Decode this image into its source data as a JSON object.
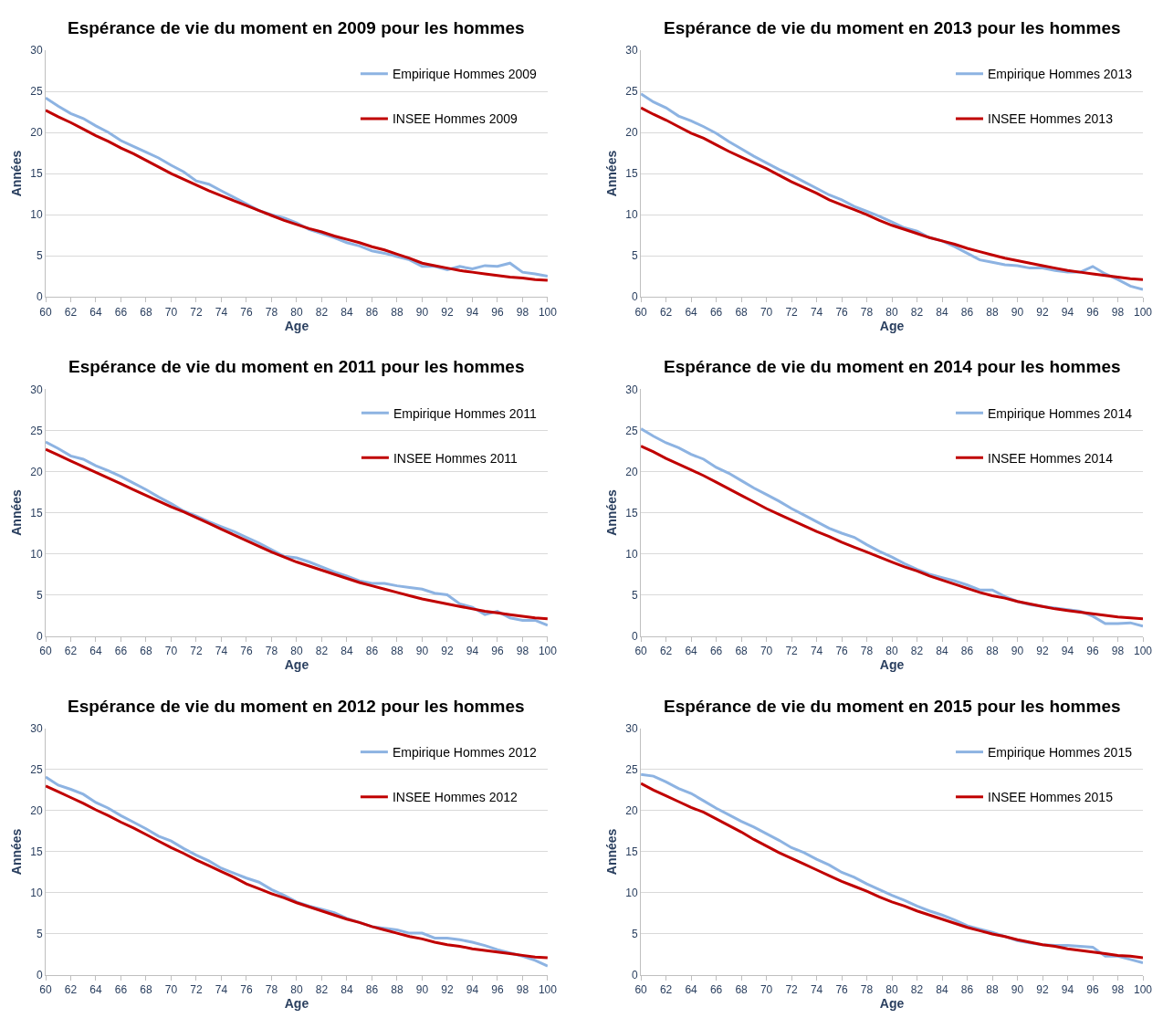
{
  "chart_data": [
    {
      "type": "line",
      "title": "Espérance de vie du moment en 2009 pour les hommes",
      "xlabel": "Age",
      "ylabel": "Années",
      "x": [
        60,
        61,
        62,
        63,
        64,
        65,
        66,
        67,
        68,
        69,
        70,
        71,
        72,
        73,
        74,
        75,
        76,
        77,
        78,
        79,
        80,
        81,
        82,
        83,
        84,
        85,
        86,
        87,
        88,
        89,
        90,
        91,
        92,
        93,
        94,
        95,
        96,
        97,
        98,
        99,
        100
      ],
      "xlim": [
        60,
        100
      ],
      "xticks": [
        60,
        62,
        64,
        66,
        68,
        70,
        72,
        74,
        76,
        78,
        80,
        82,
        84,
        86,
        88,
        90,
        92,
        94,
        96,
        98,
        100
      ],
      "ylim": [
        0,
        30
      ],
      "yticks": [
        0,
        5,
        10,
        15,
        20,
        25,
        30
      ],
      "grid": "y",
      "legend": "top right",
      "marker": "none",
      "line_style": "solid",
      "series": [
        {
          "name": "Empirique Hommes 2009",
          "color": "#8db3e2",
          "values": [
            24.2,
            23.2,
            22.3,
            21.7,
            20.8,
            20.0,
            19.0,
            18.3,
            17.6,
            16.9,
            16.0,
            15.2,
            14.1,
            13.7,
            12.9,
            12.1,
            11.3,
            10.5,
            10.0,
            9.6,
            9.0,
            8.2,
            7.7,
            7.2,
            6.6,
            6.2,
            5.6,
            5.3,
            4.9,
            4.5,
            3.7,
            3.7,
            3.3,
            3.7,
            3.4,
            3.8,
            3.7,
            4.1,
            3.0,
            2.8,
            2.5
          ]
        },
        {
          "name": "INSEE Hommes 2009",
          "color": "#c00000",
          "values": [
            22.7,
            21.9,
            21.2,
            20.4,
            19.6,
            18.9,
            18.1,
            17.4,
            16.6,
            15.8,
            15.0,
            14.3,
            13.6,
            12.9,
            12.3,
            11.7,
            11.1,
            10.5,
            9.9,
            9.3,
            8.8,
            8.3,
            7.9,
            7.4,
            7.0,
            6.6,
            6.1,
            5.7,
            5.2,
            4.7,
            4.1,
            3.8,
            3.5,
            3.2,
            3.0,
            2.8,
            2.6,
            2.4,
            2.3,
            2.1,
            2.0
          ]
        }
      ]
    },
    {
      "type": "line",
      "title": "Espérance de vie du moment en 2013 pour les hommes",
      "xlabel": "Age",
      "ylabel": "Années",
      "x": [
        60,
        61,
        62,
        63,
        64,
        65,
        66,
        67,
        68,
        69,
        70,
        71,
        72,
        73,
        74,
        75,
        76,
        77,
        78,
        79,
        80,
        81,
        82,
        83,
        84,
        85,
        86,
        87,
        88,
        89,
        90,
        91,
        92,
        93,
        94,
        95,
        96,
        97,
        98,
        99,
        100
      ],
      "xlim": [
        60,
        100
      ],
      "xticks": [
        60,
        62,
        64,
        66,
        68,
        70,
        72,
        74,
        76,
        78,
        80,
        82,
        84,
        86,
        88,
        90,
        92,
        94,
        96,
        98,
        100
      ],
      "ylim": [
        0,
        30
      ],
      "yticks": [
        0,
        5,
        10,
        15,
        20,
        25,
        30
      ],
      "grid": "y",
      "legend": "top right",
      "marker": "none",
      "line_style": "solid",
      "series": [
        {
          "name": "Empirique Hommes 2013",
          "color": "#8db3e2",
          "values": [
            24.7,
            23.7,
            23.0,
            22.0,
            21.4,
            20.7,
            19.9,
            18.9,
            18.0,
            17.1,
            16.3,
            15.5,
            14.8,
            14.0,
            13.2,
            12.4,
            11.8,
            11.0,
            10.4,
            9.8,
            9.1,
            8.4,
            8.0,
            7.2,
            6.8,
            6.1,
            5.3,
            4.5,
            4.2,
            3.9,
            3.8,
            3.5,
            3.5,
            3.2,
            3.0,
            3.0,
            3.7,
            2.8,
            2.1,
            1.3,
            0.9
          ]
        },
        {
          "name": "INSEE Hommes 2013",
          "color": "#c00000",
          "values": [
            23.0,
            22.2,
            21.5,
            20.7,
            19.9,
            19.3,
            18.5,
            17.7,
            17.0,
            16.3,
            15.6,
            14.8,
            14.0,
            13.3,
            12.6,
            11.8,
            11.2,
            10.6,
            10.0,
            9.3,
            8.7,
            8.2,
            7.7,
            7.2,
            6.8,
            6.4,
            5.9,
            5.5,
            5.1,
            4.7,
            4.4,
            4.1,
            3.8,
            3.5,
            3.2,
            3.0,
            2.8,
            2.6,
            2.4,
            2.2,
            2.1
          ]
        }
      ]
    },
    {
      "type": "line",
      "title": "Espérance de vie du moment en 2011 pour les hommes",
      "xlabel": "Age",
      "ylabel": "Années",
      "x": [
        60,
        61,
        62,
        63,
        64,
        65,
        66,
        67,
        68,
        69,
        70,
        71,
        72,
        73,
        74,
        75,
        76,
        77,
        78,
        79,
        80,
        81,
        82,
        83,
        84,
        85,
        86,
        87,
        88,
        89,
        90,
        91,
        92,
        93,
        94,
        95,
        96,
        97,
        98,
        99,
        100
      ],
      "xlim": [
        60,
        100
      ],
      "xticks": [
        60,
        62,
        64,
        66,
        68,
        70,
        72,
        74,
        76,
        78,
        80,
        82,
        84,
        86,
        88,
        90,
        92,
        94,
        96,
        98,
        100
      ],
      "ylim": [
        0,
        30
      ],
      "yticks": [
        0,
        5,
        10,
        15,
        20,
        25,
        30
      ],
      "grid": "y",
      "legend": "top right",
      "marker": "none",
      "line_style": "solid",
      "series": [
        {
          "name": "Empirique Hommes 2011",
          "color": "#8db3e2",
          "values": [
            23.6,
            22.8,
            21.9,
            21.5,
            20.7,
            20.1,
            19.4,
            18.6,
            17.8,
            16.9,
            16.1,
            15.2,
            14.6,
            13.9,
            13.3,
            12.7,
            12.0,
            11.3,
            10.5,
            9.7,
            9.5,
            9.0,
            8.4,
            7.8,
            7.3,
            6.7,
            6.4,
            6.4,
            6.1,
            5.9,
            5.7,
            5.2,
            5.0,
            3.9,
            3.5,
            2.6,
            3.0,
            2.2,
            1.9,
            1.9,
            1.3
          ]
        },
        {
          "name": "INSEE Hommes 2011",
          "color": "#c00000",
          "values": [
            22.7,
            22.0,
            21.3,
            20.6,
            19.9,
            19.2,
            18.5,
            17.8,
            17.1,
            16.4,
            15.7,
            15.1,
            14.4,
            13.7,
            13.0,
            12.3,
            11.6,
            10.9,
            10.2,
            9.6,
            9.0,
            8.5,
            8.0,
            7.5,
            7.0,
            6.5,
            6.1,
            5.7,
            5.3,
            4.9,
            4.5,
            4.2,
            3.9,
            3.6,
            3.3,
            3.0,
            2.8,
            2.6,
            2.4,
            2.2,
            2.1
          ]
        }
      ]
    },
    {
      "type": "line",
      "title": "Espérance de vie du moment en 2014 pour les hommes",
      "xlabel": "Age",
      "ylabel": "Années",
      "x": [
        60,
        61,
        62,
        63,
        64,
        65,
        66,
        67,
        68,
        69,
        70,
        71,
        72,
        73,
        74,
        75,
        76,
        77,
        78,
        79,
        80,
        81,
        82,
        83,
        84,
        85,
        86,
        87,
        88,
        89,
        90,
        91,
        92,
        93,
        94,
        95,
        96,
        97,
        98,
        99,
        100
      ],
      "xlim": [
        60,
        100
      ],
      "xticks": [
        60,
        62,
        64,
        66,
        68,
        70,
        72,
        74,
        76,
        78,
        80,
        82,
        84,
        86,
        88,
        90,
        92,
        94,
        96,
        98,
        100
      ],
      "ylim": [
        0,
        30
      ],
      "yticks": [
        0,
        5,
        10,
        15,
        20,
        25,
        30
      ],
      "grid": "y",
      "legend": "top right",
      "marker": "none",
      "line_style": "solid",
      "series": [
        {
          "name": "Empirique Hommes 2014",
          "color": "#8db3e2",
          "values": [
            25.2,
            24.3,
            23.5,
            22.9,
            22.1,
            21.5,
            20.5,
            19.8,
            18.9,
            18.0,
            17.2,
            16.4,
            15.5,
            14.7,
            13.9,
            13.1,
            12.5,
            12.0,
            11.1,
            10.3,
            9.6,
            8.8,
            8.1,
            7.5,
            7.1,
            6.7,
            6.2,
            5.6,
            5.6,
            4.8,
            4.2,
            3.8,
            3.6,
            3.4,
            3.2,
            3.0,
            2.4,
            1.5,
            1.5,
            1.6,
            1.2
          ]
        },
        {
          "name": "INSEE Hommes 2014",
          "color": "#c00000",
          "values": [
            23.1,
            22.4,
            21.6,
            20.9,
            20.2,
            19.5,
            18.7,
            17.9,
            17.1,
            16.3,
            15.5,
            14.8,
            14.1,
            13.4,
            12.7,
            12.1,
            11.4,
            10.8,
            10.2,
            9.6,
            9.0,
            8.4,
            7.9,
            7.3,
            6.8,
            6.3,
            5.8,
            5.3,
            4.9,
            4.6,
            4.2,
            3.9,
            3.6,
            3.3,
            3.1,
            2.9,
            2.7,
            2.5,
            2.3,
            2.2,
            2.1
          ]
        }
      ]
    },
    {
      "type": "line",
      "title": "Espérance de vie du moment en 2012 pour les hommes",
      "xlabel": "Age",
      "ylabel": "Années",
      "x": [
        60,
        61,
        62,
        63,
        64,
        65,
        66,
        67,
        68,
        69,
        70,
        71,
        72,
        73,
        74,
        75,
        76,
        77,
        78,
        79,
        80,
        81,
        82,
        83,
        84,
        85,
        86,
        87,
        88,
        89,
        90,
        91,
        92,
        93,
        94,
        95,
        96,
        97,
        98,
        99,
        100
      ],
      "xlim": [
        60,
        100
      ],
      "xticks": [
        60,
        62,
        64,
        66,
        68,
        70,
        72,
        74,
        76,
        78,
        80,
        82,
        84,
        86,
        88,
        90,
        92,
        94,
        96,
        98,
        100
      ],
      "ylim": [
        0,
        30
      ],
      "yticks": [
        0,
        5,
        10,
        15,
        20,
        25,
        30
      ],
      "grid": "y",
      "legend": "top right",
      "marker": "none",
      "line_style": "solid",
      "series": [
        {
          "name": "Empirique Hommes 2012",
          "color": "#8db3e2",
          "values": [
            24.1,
            23.1,
            22.6,
            22.0,
            21.0,
            20.3,
            19.4,
            18.6,
            17.8,
            16.9,
            16.3,
            15.4,
            14.6,
            13.9,
            13.0,
            12.4,
            11.8,
            11.3,
            10.4,
            9.7,
            8.9,
            8.4,
            8.0,
            7.6,
            6.9,
            6.4,
            5.9,
            5.7,
            5.5,
            5.1,
            5.1,
            4.5,
            4.5,
            4.3,
            4.0,
            3.6,
            3.1,
            2.7,
            2.3,
            1.8,
            1.1
          ]
        },
        {
          "name": "INSEE Hommes 2012",
          "color": "#c00000",
          "values": [
            23.0,
            22.3,
            21.6,
            20.9,
            20.1,
            19.4,
            18.6,
            17.9,
            17.1,
            16.3,
            15.5,
            14.8,
            14.0,
            13.3,
            12.6,
            11.9,
            11.1,
            10.5,
            9.9,
            9.4,
            8.8,
            8.3,
            7.8,
            7.3,
            6.8,
            6.4,
            5.9,
            5.5,
            5.1,
            4.7,
            4.4,
            4.0,
            3.7,
            3.5,
            3.2,
            3.0,
            2.8,
            2.6,
            2.4,
            2.2,
            2.1
          ]
        }
      ]
    },
    {
      "type": "line",
      "title": "Espérance de vie du moment en 2015 pour les hommes",
      "xlabel": "Age",
      "ylabel": "Années",
      "x": [
        60,
        61,
        62,
        63,
        64,
        65,
        66,
        67,
        68,
        69,
        70,
        71,
        72,
        73,
        74,
        75,
        76,
        77,
        78,
        79,
        80,
        81,
        82,
        83,
        84,
        85,
        86,
        87,
        88,
        89,
        90,
        91,
        92,
        93,
        94,
        95,
        96,
        97,
        98,
        99,
        100
      ],
      "xlim": [
        60,
        100
      ],
      "xticks": [
        60,
        62,
        64,
        66,
        68,
        70,
        72,
        74,
        76,
        78,
        80,
        82,
        84,
        86,
        88,
        90,
        92,
        94,
        96,
        98,
        100
      ],
      "ylim": [
        0,
        30
      ],
      "yticks": [
        0,
        5,
        10,
        15,
        20,
        25,
        30
      ],
      "grid": "y",
      "legend": "top right",
      "marker": "none",
      "line_style": "solid",
      "series": [
        {
          "name": "Empirique Hommes 2015",
          "color": "#8db3e2",
          "values": [
            24.4,
            24.2,
            23.5,
            22.7,
            22.1,
            21.2,
            20.3,
            19.5,
            18.7,
            18.0,
            17.2,
            16.4,
            15.5,
            14.9,
            14.1,
            13.4,
            12.5,
            11.9,
            11.1,
            10.4,
            9.7,
            9.1,
            8.4,
            7.8,
            7.3,
            6.7,
            6.0,
            5.6,
            5.2,
            4.7,
            4.2,
            3.9,
            3.7,
            3.6,
            3.6,
            3.5,
            3.4,
            2.3,
            2.3,
            1.9,
            1.5
          ]
        },
        {
          "name": "INSEE Hommes 2015",
          "color": "#c00000",
          "values": [
            23.3,
            22.5,
            21.8,
            21.1,
            20.4,
            19.8,
            19.0,
            18.2,
            17.4,
            16.5,
            15.7,
            14.9,
            14.2,
            13.5,
            12.8,
            12.1,
            11.4,
            10.8,
            10.2,
            9.5,
            8.9,
            8.4,
            7.8,
            7.3,
            6.8,
            6.3,
            5.8,
            5.4,
            5.0,
            4.7,
            4.3,
            4.0,
            3.7,
            3.5,
            3.2,
            3.0,
            2.8,
            2.6,
            2.4,
            2.3,
            2.1
          ]
        }
      ]
    }
  ]
}
